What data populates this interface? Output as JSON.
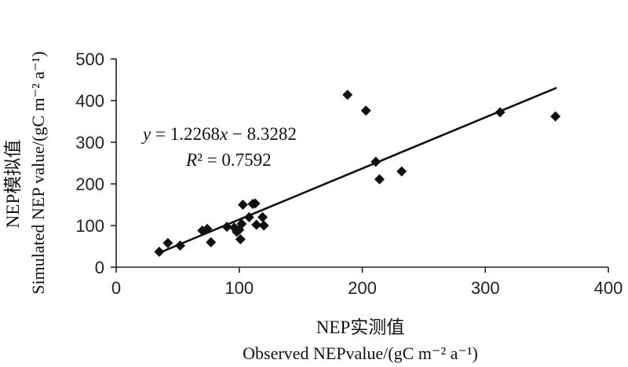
{
  "chart_data": {
    "type": "scatter",
    "title": "",
    "xlabel_cn": "NEP实测值",
    "xlabel": "Observed NEPvalue/(gC m⁻² a⁻¹)",
    "ylabel_cn": "NEP模拟值",
    "ylabel": "Simulated NEP value/(gC m⁻² a⁻¹)",
    "xlim": [
      0,
      400
    ],
    "ylim": [
      0,
      500
    ],
    "xticks": [
      "0",
      "100",
      "200",
      "300",
      "400"
    ],
    "yticks": [
      "0",
      "100",
      "200",
      "300",
      "400",
      "500"
    ],
    "grid": false,
    "legend": "none",
    "marker": "diamond",
    "marker_color": "#111111",
    "points": [
      {
        "x": 35,
        "y": 37
      },
      {
        "x": 42,
        "y": 58
      },
      {
        "x": 52,
        "y": 52
      },
      {
        "x": 70,
        "y": 88
      },
      {
        "x": 74,
        "y": 92
      },
      {
        "x": 77,
        "y": 60
      },
      {
        "x": 90,
        "y": 97
      },
      {
        "x": 96,
        "y": 95
      },
      {
        "x": 98,
        "y": 85
      },
      {
        "x": 100,
        "y": 90
      },
      {
        "x": 101,
        "y": 67
      },
      {
        "x": 102,
        "y": 104
      },
      {
        "x": 103,
        "y": 150
      },
      {
        "x": 108,
        "y": 120
      },
      {
        "x": 111,
        "y": 152
      },
      {
        "x": 113,
        "y": 153
      },
      {
        "x": 114,
        "y": 102
      },
      {
        "x": 119,
        "y": 120
      },
      {
        "x": 120,
        "y": 100
      },
      {
        "x": 188,
        "y": 414
      },
      {
        "x": 203,
        "y": 376
      },
      {
        "x": 211,
        "y": 253
      },
      {
        "x": 214,
        "y": 211
      },
      {
        "x": 232,
        "y": 230
      },
      {
        "x": 312,
        "y": 372
      },
      {
        "x": 357,
        "y": 362
      }
    ],
    "fit_line": {
      "slope": 1.2268,
      "intercept": -8.3282,
      "x_range": [
        35,
        358
      ],
      "equation_text": "y = 1.2268x − 8.3282",
      "r2_text": "R² = 0.7592",
      "line_color": "#111111"
    }
  }
}
